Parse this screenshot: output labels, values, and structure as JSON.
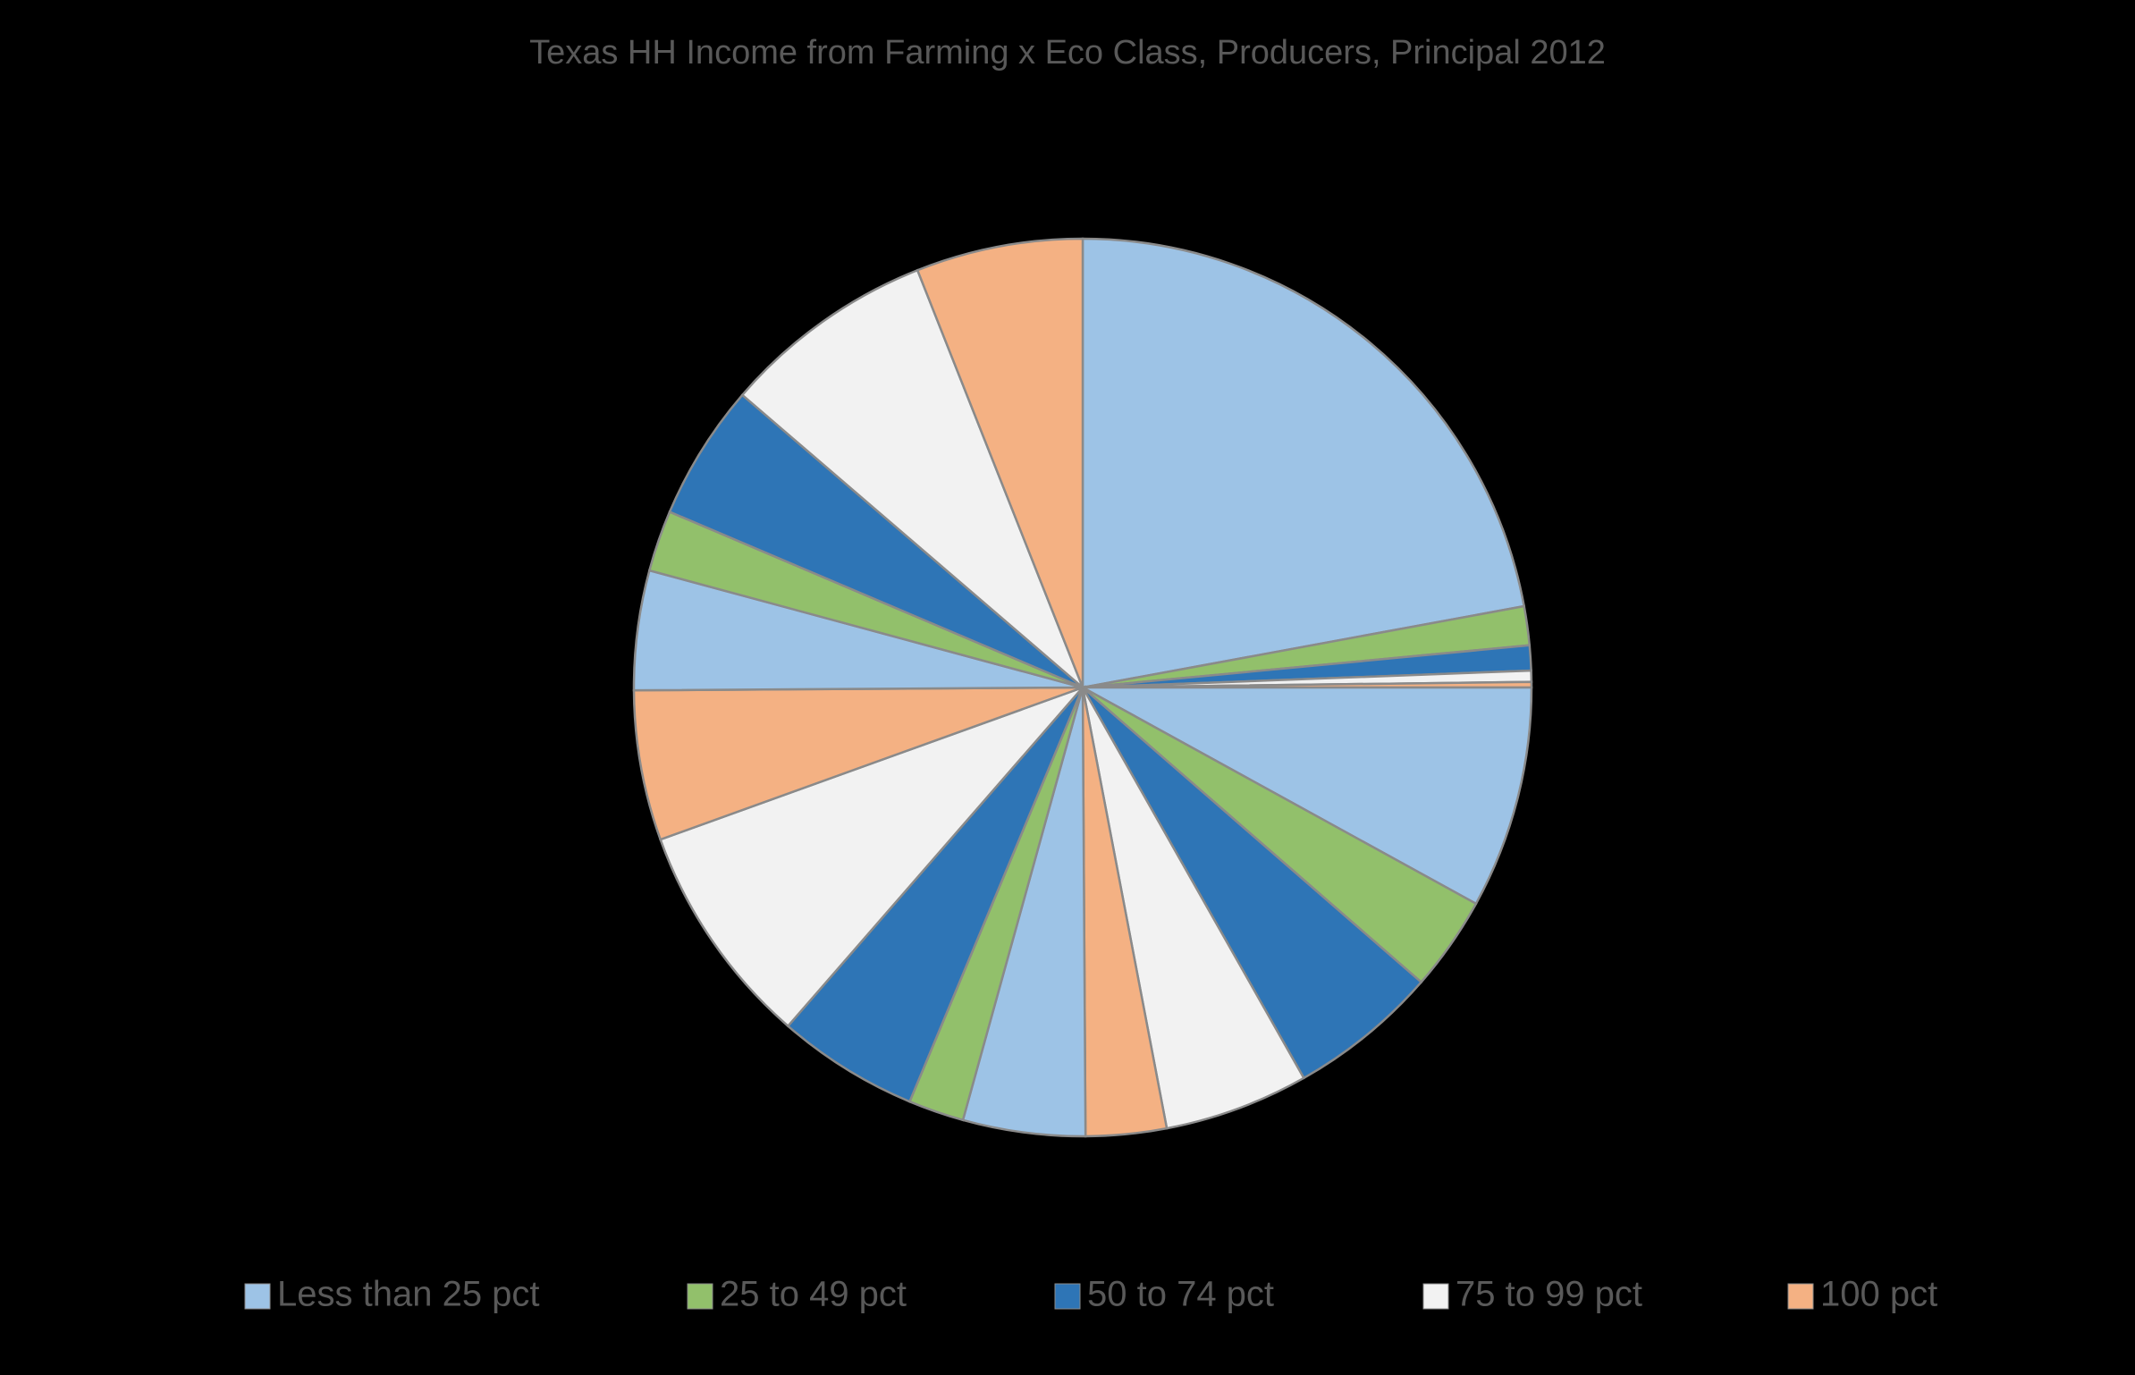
{
  "chart_data": {
    "type": "pie",
    "title": "Texas HH Income from Farming x Eco Class, Producers, Principal  2012",
    "series": [
      {
        "name": "Less than 25 pct",
        "color": "#9dc3e6",
        "values": [
          22.1,
          8.0,
          4.4,
          4.3
        ]
      },
      {
        "name": "25 to 49 pct",
        "color": "#92c06b",
        "values": [
          1.4,
          3.4,
          2.0,
          2.2
        ]
      },
      {
        "name": "50 to 74 pct",
        "color": "#2e75b6",
        "values": [
          0.9,
          5.4,
          5.1,
          4.9
        ]
      },
      {
        "name": "75 to 99 pct",
        "color": "#f2f2f2",
        "values": [
          0.4,
          5.2,
          8.1,
          7.7
        ]
      },
      {
        "name": "100 pct",
        "color": "#f4b183",
        "values": [
          0.2,
          2.9,
          5.4,
          6.0
        ]
      }
    ]
  }
}
